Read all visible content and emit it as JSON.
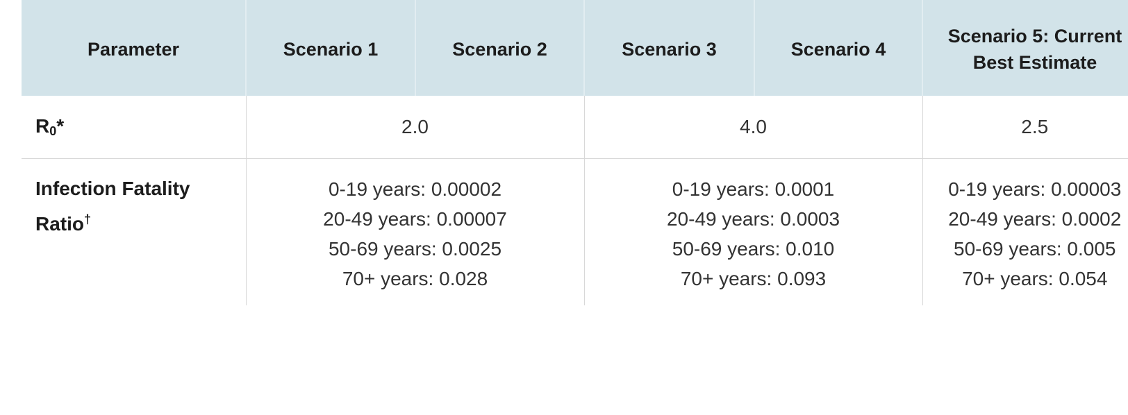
{
  "table": {
    "headers": {
      "parameter": "Parameter",
      "scenario1": "Scenario 1",
      "scenario2": "Scenario 2",
      "scenario3": "Scenario 3",
      "scenario4": "Scenario 4",
      "scenario5_line1": "Scenario 5: Current",
      "scenario5_line2": "Best Estimate"
    },
    "rows": {
      "r0": {
        "label_base": "R",
        "label_sub": "0",
        "label_mark": "*",
        "scenarios_1_2": "2.0",
        "scenarios_3_4": "4.0",
        "scenario_5": "2.5"
      },
      "ifr": {
        "label_line1": "Infection Fatality",
        "label_line2": "Ratio",
        "label_mark": "†",
        "scenarios_1_2": [
          "0-19 years: 0.00002",
          "20-49 years: 0.00007",
          "50-69 years: 0.0025",
          "70+ years: 0.028"
        ],
        "scenarios_3_4": [
          "0-19 years: 0.0001",
          "20-49 years: 0.0003",
          "50-69 years: 0.010",
          "70+ years: 0.093"
        ],
        "scenario_5": [
          "0-19 years: 0.00003",
          "20-49 years: 0.0002",
          "50-69 years: 0.005",
          "70+ years: 0.054"
        ]
      }
    },
    "colors": {
      "header_bg": "#d2e3e9",
      "border": "#d8d8d8",
      "text": "#333333"
    }
  }
}
